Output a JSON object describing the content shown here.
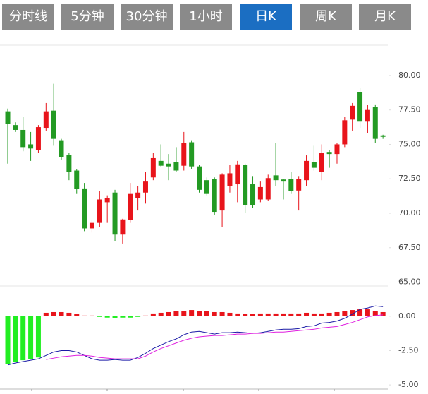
{
  "tabs": {
    "items": [
      "分时线",
      "5分钟",
      "30分钟",
      "1小时",
      "日K",
      "周K",
      "月K"
    ],
    "active": 4,
    "color": "#8a8a8a",
    "active_color": "#1b6ec2"
  },
  "chart_data": [
    {
      "type": "candlestick",
      "up_color": "#e8141b",
      "down_color": "#239a23",
      "open": [
        77.4,
        76.4,
        76.05,
        75.0,
        74.6,
        76.2,
        77.45,
        75.3,
        74.25,
        73.1,
        71.8,
        68.9,
        69.3,
        70.8,
        71.5,
        68.45,
        69.5,
        71.1,
        71.5,
        72.6,
        73.8,
        73.6,
        73.7,
        73.45,
        75.15,
        73.4,
        72.4,
        72.5,
        70.2,
        72.0,
        72.1,
        73.5,
        72.1,
        71.0,
        71.0,
        72.75,
        72.45,
        72.5,
        71.65,
        72.4,
        73.7,
        73.0,
        74.45,
        74.3,
        75.0,
        76.8,
        78.8,
        76.65,
        77.7,
        75.65
      ],
      "high": [
        77.6,
        76.6,
        77.0,
        75.9,
        76.4,
        78.0,
        79.4,
        75.4,
        74.4,
        73.2,
        72.2,
        69.5,
        71.6,
        71.3,
        71.7,
        69.6,
        72.2,
        72.0,
        73.0,
        74.4,
        75.0,
        74.3,
        74.8,
        75.9,
        75.3,
        73.5,
        72.6,
        72.6,
        72.9,
        73.5,
        73.8,
        73.6,
        72.7,
        72.3,
        72.8,
        75.1,
        72.5,
        73.0,
        72.7,
        74.2,
        74.9,
        75.0,
        74.6,
        75.1,
        77.0,
        78.0,
        79.1,
        77.85,
        77.9,
        75.7
      ],
      "low": [
        73.6,
        75.9,
        74.5,
        73.8,
        74.4,
        76.0,
        74.9,
        73.9,
        72.4,
        71.4,
        68.7,
        68.6,
        69.0,
        69.3,
        68.0,
        67.8,
        69.3,
        70.2,
        70.7,
        72.4,
        73.4,
        72.4,
        73.0,
        73.1,
        73.2,
        71.5,
        71.3,
        69.9,
        69.0,
        71.5,
        70.8,
        70.0,
        70.4,
        70.8,
        70.9,
        72.0,
        71.0,
        71.4,
        70.2,
        72.0,
        73.1,
        72.4,
        73.3,
        73.6,
        74.8,
        76.0,
        76.2,
        75.8,
        75.1,
        75.4
      ],
      "close": [
        76.5,
        76.05,
        74.8,
        74.7,
        76.25,
        77.4,
        75.4,
        74.1,
        73.0,
        71.75,
        68.9,
        69.3,
        71.0,
        71.1,
        68.45,
        69.55,
        71.4,
        71.5,
        72.3,
        74.0,
        73.45,
        73.4,
        73.1,
        75.1,
        73.4,
        71.7,
        71.4,
        70.1,
        72.8,
        72.9,
        73.55,
        70.6,
        70.6,
        71.9,
        72.55,
        72.4,
        72.3,
        71.6,
        72.5,
        73.8,
        73.3,
        74.4,
        74.3,
        75.0,
        76.75,
        77.8,
        76.65,
        77.5,
        75.4,
        75.55
      ],
      "ylim": [
        64.72,
        82.2
      ],
      "yticks": [
        {
          "value": 80,
          "label": "80.00"
        },
        {
          "value": 77.5,
          "label": "77.50"
        },
        {
          "value": 75,
          "label": "75.00"
        },
        {
          "value": 72.5,
          "label": "72.50"
        },
        {
          "value": 70,
          "label": "70.00"
        },
        {
          "value": 67.5,
          "label": "67.50"
        },
        {
          "value": 65,
          "label": "65.00"
        }
      ]
    },
    {
      "type": "macd",
      "histogram": {
        "up_color": "#e8141b",
        "down_color": "#22ee22",
        "values": [
          -3.5,
          -3.3,
          -3.2,
          -3.1,
          -3.0,
          0.25,
          0.3,
          0.3,
          0.25,
          0.15,
          0.05,
          0.05,
          -0.05,
          -0.1,
          -0.15,
          -0.1,
          -0.1,
          -0.05,
          0.05,
          0.2,
          0.25,
          0.3,
          0.35,
          0.4,
          0.45,
          0.4,
          0.35,
          0.3,
          0.3,
          0.25,
          0.2,
          0.15,
          0.15,
          0.2,
          0.2,
          0.2,
          0.2,
          0.2,
          0.2,
          0.25,
          0.2,
          0.2,
          0.25,
          0.3,
          0.35,
          0.45,
          0.5,
          0.5,
          0.4,
          0.3
        ]
      },
      "dif": {
        "color": "#1a1aa6",
        "values": [
          -3.55,
          -3.4,
          -3.3,
          -3.2,
          -3.1,
          -2.85,
          -2.6,
          -2.5,
          -2.5,
          -2.6,
          -2.85,
          -3.1,
          -3.2,
          -3.2,
          -3.15,
          -3.2,
          -3.2,
          -3.0,
          -2.7,
          -2.35,
          -2.1,
          -1.85,
          -1.65,
          -1.35,
          -1.15,
          -1.1,
          -1.2,
          -1.3,
          -1.2,
          -1.2,
          -1.15,
          -1.2,
          -1.25,
          -1.2,
          -1.1,
          -1.0,
          -0.95,
          -0.95,
          -0.9,
          -0.75,
          -0.7,
          -0.5,
          -0.45,
          -0.35,
          -0.15,
          0.15,
          0.5,
          0.6,
          0.75,
          0.7
        ]
      },
      "dea": {
        "color": "#e020e0",
        "values": [
          null,
          null,
          null,
          null,
          null,
          -3.15,
          -3.05,
          -2.95,
          -2.9,
          -2.85,
          -2.85,
          -2.9,
          -3.0,
          -3.05,
          -3.1,
          -3.1,
          -3.1,
          -3.1,
          -2.9,
          -2.6,
          -2.35,
          -2.15,
          -1.95,
          -1.75,
          -1.6,
          -1.5,
          -1.45,
          -1.4,
          -1.4,
          -1.35,
          -1.3,
          -1.3,
          -1.25,
          -1.25,
          -1.2,
          -1.15,
          -1.15,
          -1.1,
          -1.05,
          -1.0,
          -0.95,
          -0.85,
          -0.8,
          -0.75,
          -0.6,
          -0.45,
          -0.25,
          -0.05,
          0.05,
          0.1
        ]
      },
      "ylim": [
        -5.25,
        2.2
      ],
      "yticks": [
        {
          "value": 0,
          "label": "0.00"
        },
        {
          "value": -2.5,
          "label": "-2.50"
        },
        {
          "value": -5,
          "label": "-5.00"
        }
      ]
    }
  ]
}
